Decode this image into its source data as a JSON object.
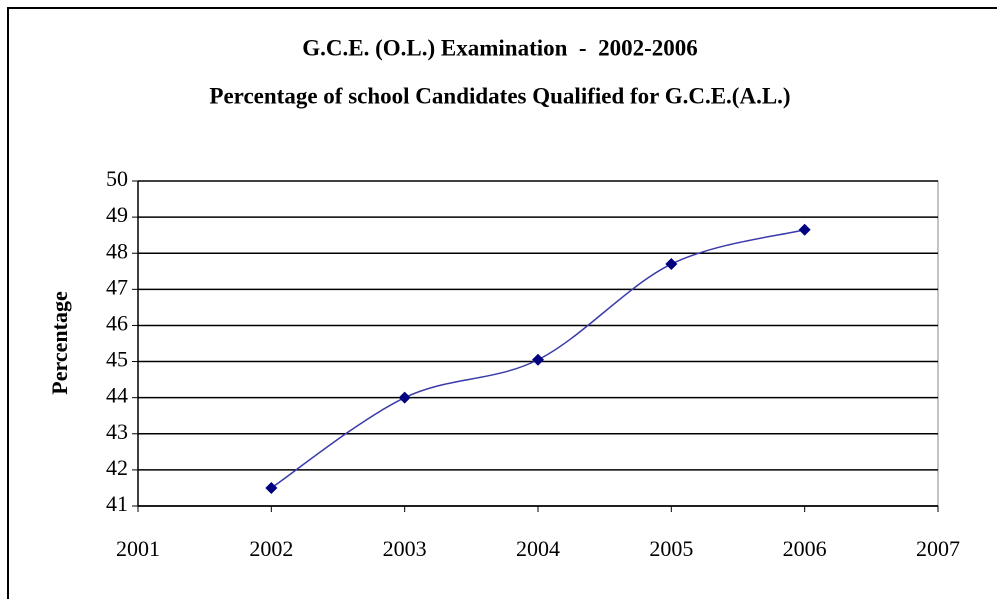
{
  "chart_data": {
    "type": "line",
    "title": "G.C.E. (O.L.) Examination  -  2002-2006",
    "subtitle": "Percentage of school Candidates Qualified for G.C.E.(A.L.)",
    "y_label": "Percentage",
    "x": [
      2002,
      2003,
      2004,
      2005,
      2006
    ],
    "series": [
      {
        "name": "Percentage",
        "color": "#000080",
        "values": [
          41.5,
          44.0,
          45.05,
          47.7,
          48.65
        ]
      }
    ],
    "xlim": [
      2001,
      2007
    ],
    "xticks": [
      2001,
      2002,
      2003,
      2004,
      2005,
      2006,
      2007
    ],
    "ylim": [
      41,
      50
    ],
    "yticks": [
      41,
      42,
      43,
      44,
      45,
      46,
      47,
      48,
      49,
      50
    ],
    "grid": true,
    "smooth": true
  }
}
